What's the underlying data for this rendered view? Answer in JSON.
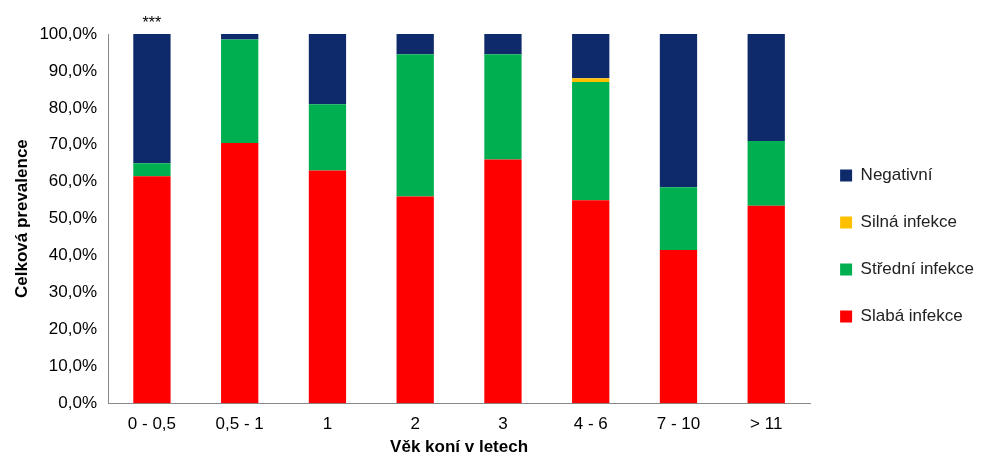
{
  "chart_data": {
    "type": "bar",
    "stacked": true,
    "xlabel": "Věk koní v letech",
    "ylabel": "Celková prevalence",
    "categories": [
      "0 - 0,5",
      "0,5 - 1",
      "1",
      "2",
      "3",
      "4 - 6",
      "7 - 10",
      "> 11"
    ],
    "series": [
      {
        "name": "Slabá infekce",
        "color": "#ff0000",
        "values": [
          61.5,
          70.5,
          63,
          56,
          66,
          55,
          41.5,
          53.5
        ]
      },
      {
        "name": "Střední infekce",
        "color": "#00b050",
        "values": [
          3.5,
          28,
          18,
          38.5,
          28.5,
          32,
          17,
          17.5
        ]
      },
      {
        "name": "Silná infekce",
        "color": "#ffc000",
        "values": [
          0,
          0,
          0,
          0,
          0,
          1,
          0,
          0
        ]
      },
      {
        "name": "Negativní",
        "color": "#0f2a6b",
        "values": [
          35,
          1.5,
          19,
          5.5,
          5.5,
          12,
          41.5,
          29
        ]
      }
    ],
    "ylim": [
      0,
      100
    ],
    "yticks": [
      {
        "value": 0,
        "label": "0,0%"
      },
      {
        "value": 10,
        "label": "10,0%"
      },
      {
        "value": 20,
        "label": "20,0%"
      },
      {
        "value": 30,
        "label": "30,0%"
      },
      {
        "value": 40,
        "label": "40,0%"
      },
      {
        "value": 50,
        "label": "50,0%"
      },
      {
        "value": 60,
        "label": "60,0%"
      },
      {
        "value": 70,
        "label": "70,0%"
      },
      {
        "value": 80,
        "label": "80,0%"
      },
      {
        "value": 90,
        "label": "90,0%"
      },
      {
        "value": 100,
        "label": "100,0%"
      }
    ],
    "grid": false,
    "legend": "right",
    "annotations": [
      {
        "text": "***",
        "x": "0 - 0,5",
        "y": 100
      }
    ]
  }
}
